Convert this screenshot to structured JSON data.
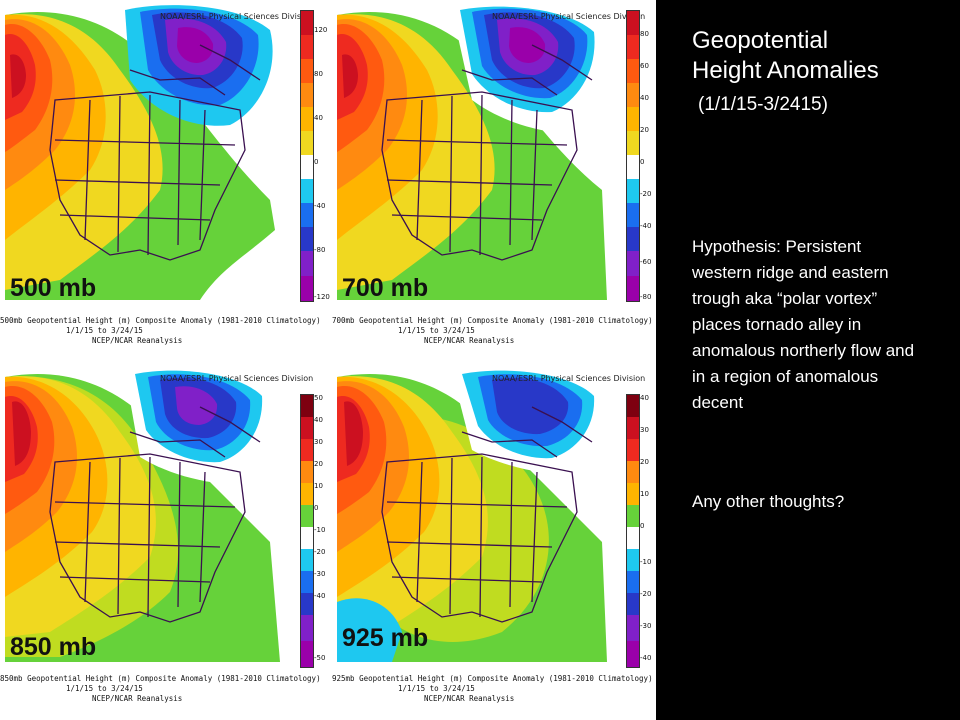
{
  "sidebar": {
    "title_line1": "Geopotential",
    "title_line2": "Height Anomalies",
    "date_range": "(1/1/15-3/2415)",
    "hypothesis": "Hypothesis: Persistent western ridge and eastern trough aka “polar vortex” places tornado alley in anomalous northerly flow and in a region of anomalous decent",
    "question": "Any other thoughts?"
  },
  "credit": "NOAA/ESRL Physical Sciences Division",
  "panels": [
    {
      "label": "500 mb",
      "caption": "500mb Geopotential Height (m) Composite Anomaly (1981-2010 Climatology)",
      "dates": "1/1/15  to 3/24/15",
      "source": "NCEP/NCAR Reanalysis",
      "colorbar_ticks": [
        "120",
        "80",
        "40",
        "0",
        "-40",
        "-80",
        "-120"
      ]
    },
    {
      "label": "700 mb",
      "caption": "700mb Geopotential Height (m) Composite Anomaly (1981-2010 Climatology)",
      "dates": "1/1/15  to 3/24/15",
      "source": "NCEP/NCAR Reanalysis",
      "colorbar_ticks": [
        "80",
        "60",
        "40",
        "20",
        "0",
        "-20",
        "-40",
        "-60",
        "-80"
      ]
    },
    {
      "label": "850 mb",
      "caption": "850mb Geopotential Height (m) Composite Anomaly (1981-2010 Climatology)",
      "dates": "1/1/15  to 3/24/15",
      "source": "NCEP/NCAR Reanalysis",
      "colorbar_ticks": [
        "50",
        "40",
        "30",
        "20",
        "10",
        "0",
        "-10",
        "-20",
        "-30",
        "-40",
        "-50"
      ]
    },
    {
      "label": "925 mb",
      "caption": "925mb Geopotential Height (m) Composite Anomaly (1981-2010 Climatology)",
      "dates": "1/1/15  to 3/24/15",
      "source": "NCEP/NCAR Reanalysis",
      "colorbar_ticks": [
        "40",
        "30",
        "20",
        "10",
        "0",
        "-10",
        "-20",
        "-30",
        "-40"
      ]
    }
  ],
  "colors": {
    "sidebar_bg": "#000000",
    "sidebar_text": "#ffffff",
    "anomaly_scale": [
      "#7e0010",
      "#cc1020",
      "#ee2a20",
      "#ff5a10",
      "#ff8a10",
      "#ffb400",
      "#f0d820",
      "#c0dc20",
      "#66d23a",
      "#ffffff",
      "#1ec8f0",
      "#1a6ef0",
      "#2838c8",
      "#8020c8",
      "#9a00aa"
    ]
  }
}
